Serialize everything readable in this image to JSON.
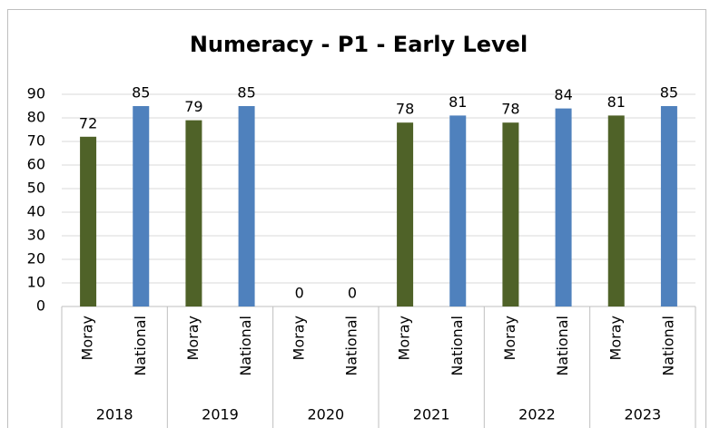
{
  "chart_data": {
    "type": "bar",
    "title": "Numeracy - P1 - Early Level",
    "categories": [
      "2018",
      "2019",
      "2020",
      "2021",
      "2022",
      "2023"
    ],
    "series": [
      {
        "name": "Moray",
        "color": "#4f6228",
        "values": [
          72,
          79,
          0,
          78,
          78,
          81
        ]
      },
      {
        "name": "National",
        "color": "#4f81bd",
        "values": [
          85,
          85,
          0,
          81,
          84,
          85
        ]
      }
    ],
    "ylim": [
      0,
      90
    ],
    "yticks": [
      0,
      10,
      20,
      30,
      40,
      50,
      60,
      70,
      80,
      90
    ],
    "grid": true
  }
}
